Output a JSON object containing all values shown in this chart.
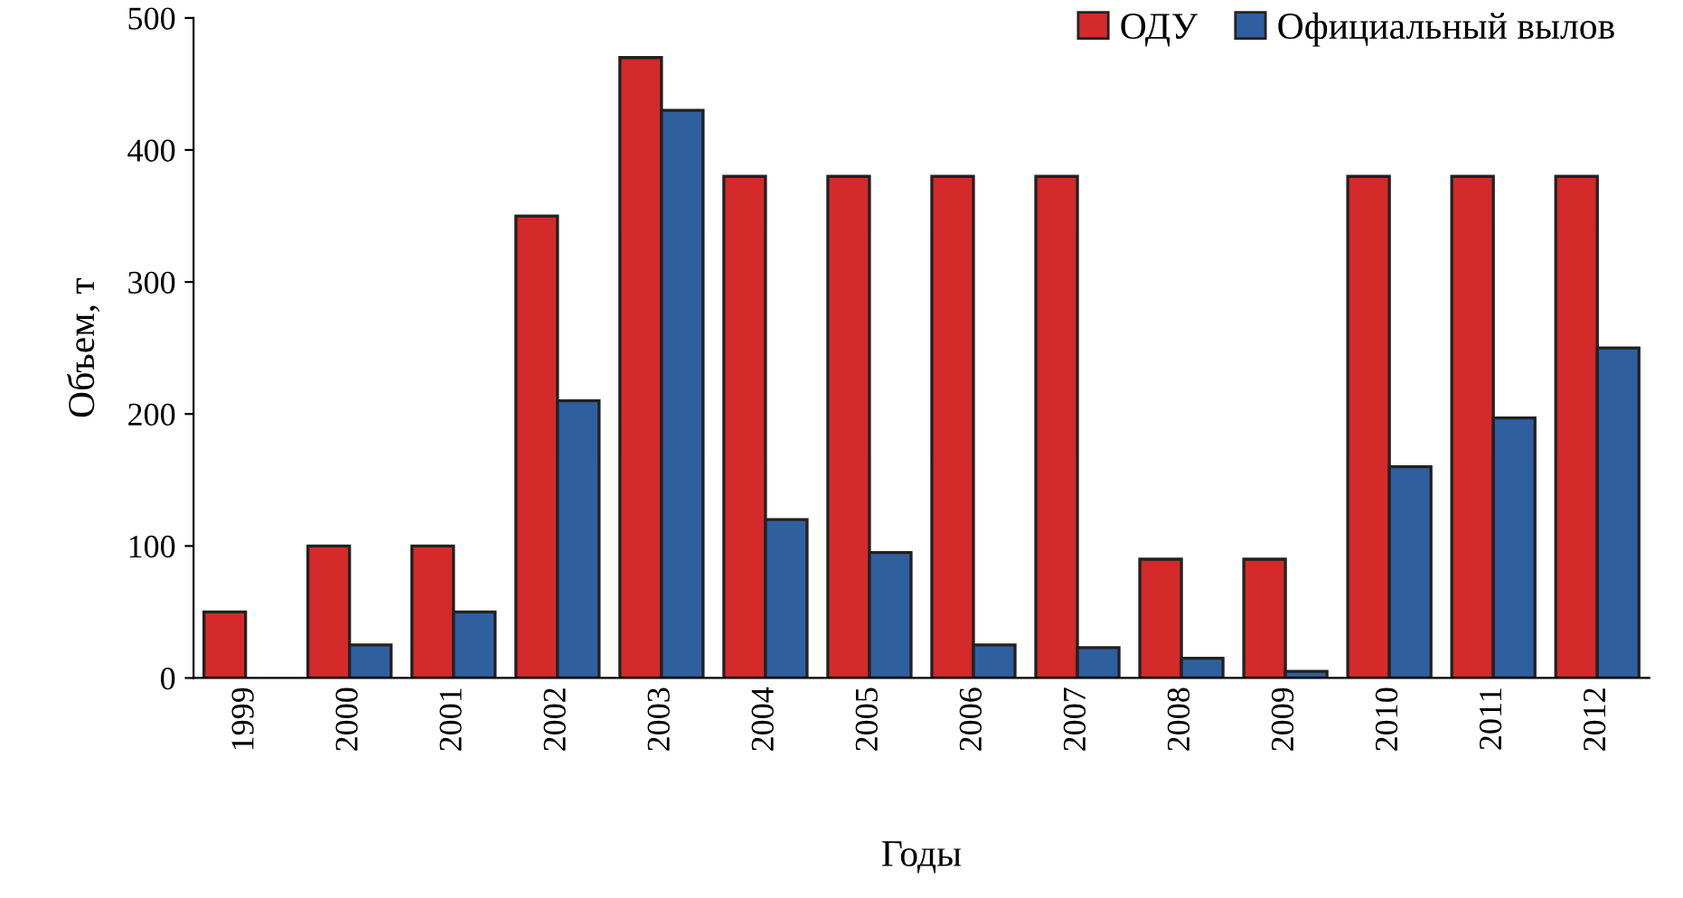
{
  "chart_data": {
    "type": "bar",
    "xlabel": "Годы",
    "ylabel": "Объем, т",
    "categories": [
      "1999",
      "2000",
      "2001",
      "2002",
      "2003",
      "2004",
      "2005",
      "2006",
      "2007",
      "2008",
      "2009",
      "2010",
      "2011",
      "2012"
    ],
    "series": [
      {
        "name": "ОДУ",
        "color": "#d42a2a",
        "values": [
          50,
          100,
          100,
          350,
          470,
          380,
          380,
          380,
          380,
          90,
          90,
          380,
          380,
          380
        ]
      },
      {
        "name": "Официальный вылов",
        "color": "#2f5f9e",
        "values": [
          null,
          25,
          50,
          210,
          430,
          120,
          95,
          25,
          23,
          15,
          5,
          160,
          197,
          250
        ]
      }
    ],
    "ylim": [
      0,
      500
    ],
    "yticks": [
      0,
      100,
      200,
      300,
      400,
      500
    ],
    "grid": false,
    "legend": "top right"
  }
}
